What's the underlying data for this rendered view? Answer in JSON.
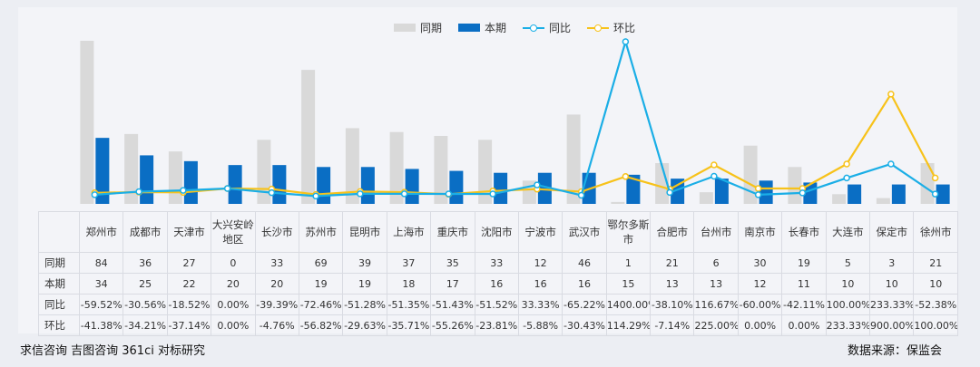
{
  "chart_data": {
    "type": "bar",
    "categories": [
      "郑州市",
      "成都市",
      "天津市",
      "大兴安岭地区",
      "长沙市",
      "苏州市",
      "昆明市",
      "上海市",
      "重庆市",
      "沈阳市",
      "宁波市",
      "武汉市",
      "鄂尔多斯市",
      "合肥市",
      "台州市",
      "南京市",
      "长春市",
      "大连市",
      "保定市",
      "徐州市"
    ],
    "series": [
      {
        "name": "同期",
        "kind": "bar",
        "color": "#d9d9d9",
        "values": [
          84,
          36,
          27,
          0,
          33,
          69,
          39,
          37,
          35,
          33,
          12,
          46,
          1,
          21,
          6,
          30,
          19,
          5,
          3,
          21
        ]
      },
      {
        "name": "本期",
        "kind": "bar",
        "color": "#0a6ec4",
        "values": [
          34,
          25,
          22,
          20,
          20,
          19,
          19,
          18,
          17,
          16,
          16,
          16,
          15,
          13,
          13,
          12,
          11,
          10,
          10,
          10
        ]
      },
      {
        "name": "同比",
        "kind": "line",
        "color": "#1aaee6",
        "values": [
          -59.52,
          -30.56,
          -18.52,
          0.0,
          -39.39,
          -72.46,
          -51.28,
          -51.35,
          -51.43,
          -51.52,
          33.33,
          -65.22,
          1400.0,
          -38.1,
          116.67,
          -60.0,
          -42.11,
          100.0,
          233.33,
          -52.38
        ]
      },
      {
        "name": "环比",
        "kind": "line",
        "color": "#f7c21a",
        "values": [
          -41.38,
          -34.21,
          -37.14,
          0.0,
          -4.76,
          -56.82,
          -29.63,
          -35.71,
          -55.26,
          -23.81,
          -5.88,
          -30.43,
          114.29,
          -7.14,
          225.0,
          0.0,
          0.0,
          233.33,
          900.0,
          100.0
        ]
      }
    ],
    "table_rows": [
      {
        "label": "同期",
        "cells": [
          "84",
          "36",
          "27",
          "0",
          "33",
          "69",
          "39",
          "37",
          "35",
          "33",
          "12",
          "46",
          "1",
          "21",
          "6",
          "30",
          "19",
          "5",
          "3",
          "21"
        ]
      },
      {
        "label": "本期",
        "cells": [
          "34",
          "25",
          "22",
          "20",
          "20",
          "19",
          "19",
          "18",
          "17",
          "16",
          "16",
          "16",
          "15",
          "13",
          "13",
          "12",
          "11",
          "10",
          "10",
          "10"
        ]
      },
      {
        "label": "同比",
        "cells": [
          "-59.52%",
          "-30.56%",
          "-18.52%",
          "0.00%",
          "-39.39%",
          "-72.46%",
          "-51.28%",
          "-51.35%",
          "-51.43%",
          "-51.52%",
          "33.33%",
          "-65.22%",
          "1400.00%",
          "-38.10%",
          "116.67%",
          "-60.00%",
          "-42.11%",
          "100.00%",
          "233.33%",
          "-52.38%"
        ]
      },
      {
        "label": "环比",
        "cells": [
          "-41.38%",
          "-34.21%",
          "-37.14%",
          "0.00%",
          "-4.76%",
          "-56.82%",
          "-29.63%",
          "-35.71%",
          "-55.26%",
          "-23.81%",
          "-5.88%",
          "-30.43%",
          "114.29%",
          "-7.14%",
          "225.00%",
          "0.00%",
          "0.00%",
          "233.33%",
          "900.00%",
          "100.00%"
        ]
      }
    ],
    "legend_position": "top-center",
    "grid": false
  },
  "footer": {
    "left": "求信咨询 吉图咨询 361ci 对标研究",
    "right": "数据来源：保监会"
  }
}
